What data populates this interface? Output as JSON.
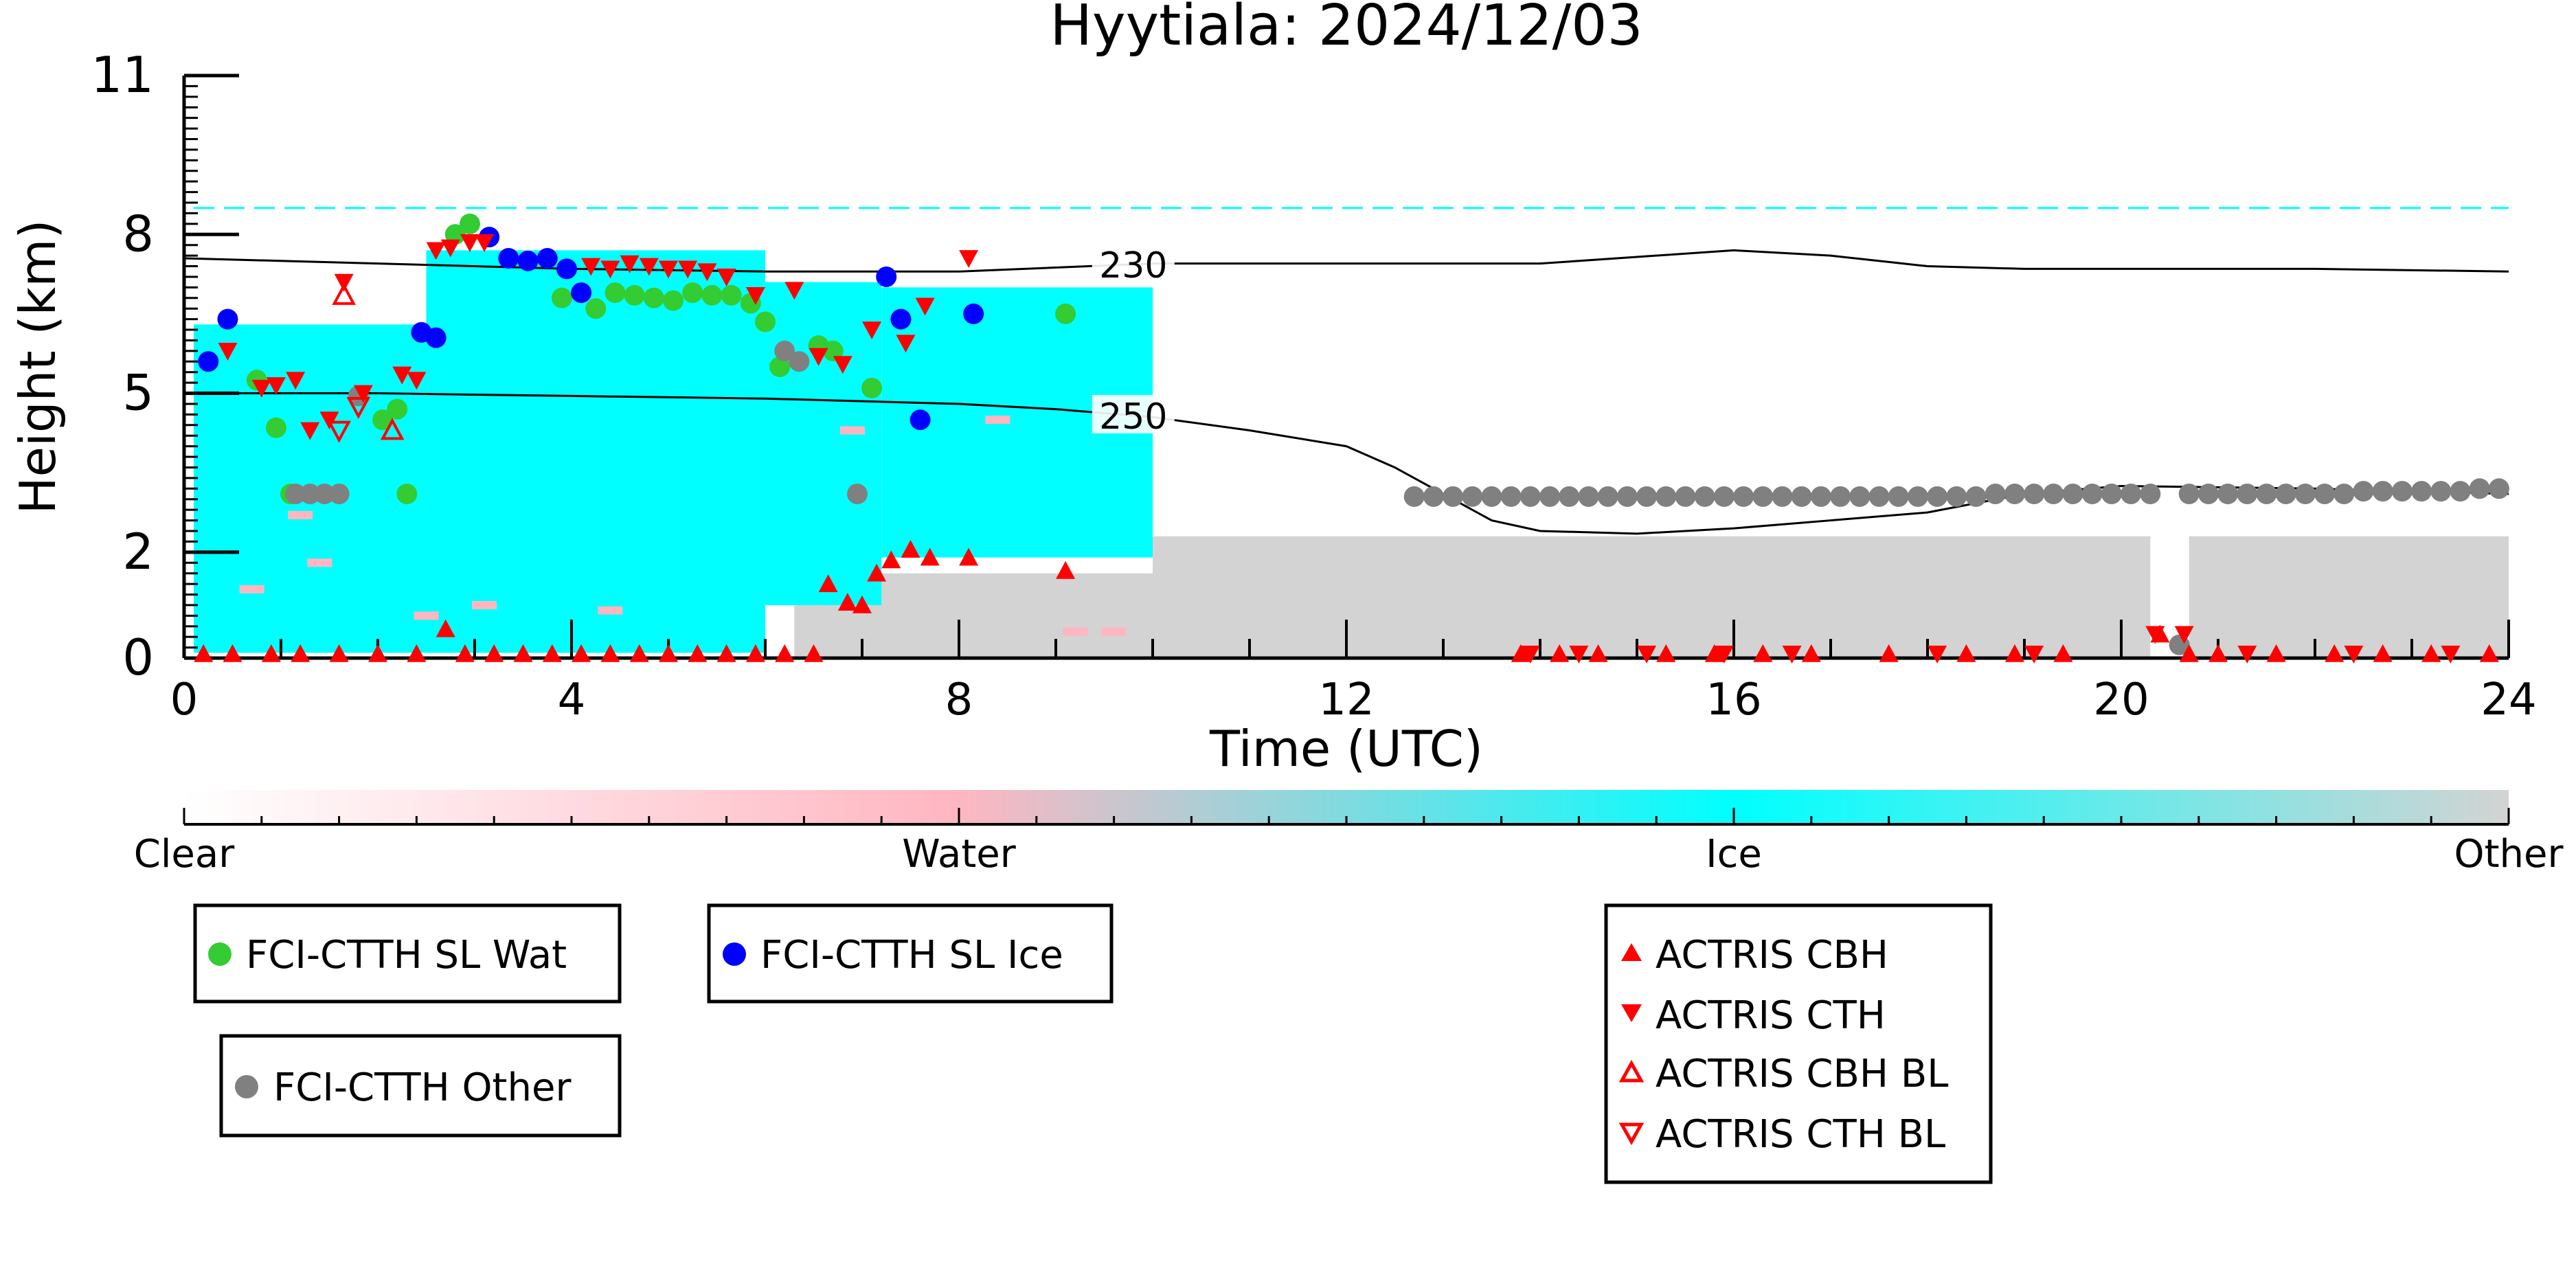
{
  "chart_data": {
    "type": "scatter",
    "title": "Hyytiala: 2024/12/03",
    "xlabel": "Time (UTC)",
    "ylabel": "Height (km)",
    "xlim": [
      0,
      24
    ],
    "ylim": [
      0,
      11
    ],
    "xticks": [
      "0",
      "4",
      "8",
      "12",
      "16",
      "20",
      "24"
    ],
    "yticks": [
      "0",
      "2",
      "5",
      "8",
      "11"
    ],
    "grid": false,
    "background_fields": [
      {
        "name": "Ice",
        "color": "#00FFFF",
        "regions": [
          {
            "x": [
              0.1,
              2.5
            ],
            "bottom": 0.1,
            "top": 6.3
          },
          {
            "x": [
              2.5,
              6.0
            ],
            "bottom": 0.1,
            "top": 7.7
          },
          {
            "x": [
              6.0,
              7.2
            ],
            "bottom": 1.0,
            "top": 7.1
          },
          {
            "x": [
              7.2,
              10.0
            ],
            "bottom": 1.9,
            "top": 7.0
          }
        ],
        "thin_layer": {
          "x": [
            0.1,
            24
          ],
          "y": 8.5
        }
      },
      {
        "name": "Water",
        "color": "#FFB6C1",
        "patches": [
          [
            0.7,
            1.3
          ],
          [
            1.4,
            1.8
          ],
          [
            2.5,
            0.8
          ],
          [
            3.1,
            1.0
          ],
          [
            4.4,
            0.9
          ],
          [
            6.9,
            4.3
          ],
          [
            8.4,
            4.5
          ],
          [
            9.2,
            0.5
          ],
          [
            9.6,
            0.5
          ],
          [
            1.2,
            2.7
          ]
        ]
      },
      {
        "name": "Other",
        "color": "#D3D3D3",
        "regions": [
          {
            "x": [
              6.3,
              10.0
            ],
            "bottom": 0.0,
            "top": 1.6
          },
          {
            "x": [
              10.0,
              20.3
            ],
            "bottom": 0.0,
            "top": 2.3
          },
          {
            "x": [
              20.7,
              24.0
            ],
            "bottom": 0.0,
            "top": 2.3
          }
        ]
      }
    ],
    "isolines": [
      {
        "label": "230",
        "x": [
          0,
          2,
          4,
          6,
          8,
          10,
          12,
          14,
          16,
          17,
          18,
          19,
          20,
          22,
          24
        ],
        "y": [
          7.55,
          7.45,
          7.35,
          7.3,
          7.3,
          7.45,
          7.45,
          7.45,
          7.7,
          7.6,
          7.4,
          7.35,
          7.35,
          7.35,
          7.3
        ]
      },
      {
        "label": "250",
        "x": [
          0,
          2,
          4,
          6,
          8,
          9,
          10,
          11,
          12,
          12.5,
          13,
          13.5,
          14,
          15,
          16,
          17,
          18,
          19,
          20,
          22,
          24
        ],
        "y": [
          5.0,
          5.0,
          4.95,
          4.9,
          4.8,
          4.7,
          4.55,
          4.3,
          4.0,
          3.6,
          3.1,
          2.6,
          2.4,
          2.35,
          2.45,
          2.6,
          2.75,
          3.1,
          3.25,
          3.2,
          3.1
        ]
      }
    ],
    "series": [
      {
        "name": "FCI-CTTH SL Wat",
        "marker": "circle",
        "color": "#33CC33",
        "points": [
          [
            0.75,
            5.25
          ],
          [
            0.95,
            4.35
          ],
          [
            1.1,
            3.1
          ],
          [
            2.05,
            4.5
          ],
          [
            2.2,
            4.7
          ],
          [
            2.3,
            3.1
          ],
          [
            2.8,
            8.0
          ],
          [
            2.95,
            8.2
          ],
          [
            3.9,
            6.8
          ],
          [
            4.25,
            6.6
          ],
          [
            4.45,
            6.9
          ],
          [
            4.65,
            6.85
          ],
          [
            4.85,
            6.8
          ],
          [
            5.05,
            6.75
          ],
          [
            5.25,
            6.9
          ],
          [
            5.45,
            6.85
          ],
          [
            5.65,
            6.85
          ],
          [
            5.85,
            6.7
          ],
          [
            6.0,
            6.35
          ],
          [
            6.15,
            5.5
          ],
          [
            6.55,
            5.9
          ],
          [
            6.7,
            5.8
          ],
          [
            7.1,
            5.1
          ],
          [
            9.1,
            6.5
          ]
        ]
      },
      {
        "name": "FCI-CTTH SL Ice",
        "marker": "circle",
        "color": "#0000FF",
        "points": [
          [
            0.25,
            5.6
          ],
          [
            0.45,
            6.4
          ],
          [
            2.45,
            6.15
          ],
          [
            2.6,
            6.05
          ],
          [
            3.15,
            7.95
          ],
          [
            3.35,
            7.55
          ],
          [
            3.55,
            7.5
          ],
          [
            3.75,
            7.55
          ],
          [
            3.95,
            7.35
          ],
          [
            4.1,
            6.9
          ],
          [
            7.25,
            7.2
          ],
          [
            7.4,
            6.4
          ],
          [
            7.6,
            4.5
          ],
          [
            8.15,
            6.5
          ]
        ]
      },
      {
        "name": "FCI-CTTH Other",
        "marker": "circle",
        "color": "#808080",
        "points": [
          [
            1.15,
            3.1
          ],
          [
            1.3,
            3.1
          ],
          [
            1.45,
            3.1
          ],
          [
            1.6,
            3.1
          ],
          [
            1.8,
            4.95
          ],
          [
            6.2,
            5.8
          ],
          [
            6.35,
            5.6
          ],
          [
            6.95,
            3.1
          ],
          [
            20.6,
            0.25
          ],
          [
            12.7,
            3.05
          ],
          [
            12.9,
            3.05
          ],
          [
            13.1,
            3.05
          ],
          [
            13.3,
            3.05
          ],
          [
            13.5,
            3.05
          ],
          [
            13.7,
            3.05
          ],
          [
            13.9,
            3.05
          ],
          [
            14.1,
            3.05
          ],
          [
            14.3,
            3.05
          ],
          [
            14.5,
            3.05
          ],
          [
            14.7,
            3.05
          ],
          [
            14.9,
            3.05
          ],
          [
            15.1,
            3.05
          ],
          [
            15.3,
            3.05
          ],
          [
            15.5,
            3.05
          ],
          [
            15.7,
            3.05
          ],
          [
            15.9,
            3.05
          ],
          [
            16.1,
            3.05
          ],
          [
            16.3,
            3.05
          ],
          [
            16.5,
            3.05
          ],
          [
            16.7,
            3.05
          ],
          [
            16.9,
            3.05
          ],
          [
            17.1,
            3.05
          ],
          [
            17.3,
            3.05
          ],
          [
            17.5,
            3.05
          ],
          [
            17.7,
            3.05
          ],
          [
            17.9,
            3.05
          ],
          [
            18.1,
            3.05
          ],
          [
            18.3,
            3.05
          ],
          [
            18.5,
            3.05
          ],
          [
            18.7,
            3.1
          ],
          [
            18.9,
            3.1
          ],
          [
            19.1,
            3.1
          ],
          [
            19.3,
            3.1
          ],
          [
            19.5,
            3.1
          ],
          [
            19.7,
            3.1
          ],
          [
            19.9,
            3.1
          ],
          [
            20.1,
            3.1
          ],
          [
            20.3,
            3.1
          ],
          [
            20.7,
            3.1
          ],
          [
            20.9,
            3.1
          ],
          [
            21.1,
            3.1
          ],
          [
            21.3,
            3.1
          ],
          [
            21.5,
            3.1
          ],
          [
            21.7,
            3.1
          ],
          [
            21.9,
            3.1
          ],
          [
            22.1,
            3.1
          ],
          [
            22.3,
            3.1
          ],
          [
            22.5,
            3.15
          ],
          [
            22.7,
            3.15
          ],
          [
            22.9,
            3.15
          ],
          [
            23.1,
            3.15
          ],
          [
            23.3,
            3.15
          ],
          [
            23.5,
            3.15
          ],
          [
            23.7,
            3.2
          ],
          [
            23.9,
            3.2
          ]
        ]
      },
      {
        "name": "ACTRIS CBH",
        "marker": "triangle-up",
        "color": "#FF0000",
        "filled": true,
        "points": [
          [
            0.2,
            0.08
          ],
          [
            0.5,
            0.08
          ],
          [
            0.9,
            0.08
          ],
          [
            1.2,
            0.08
          ],
          [
            1.6,
            0.08
          ],
          [
            2.0,
            0.08
          ],
          [
            2.4,
            0.08
          ],
          [
            2.7,
            0.55
          ],
          [
            2.9,
            0.08
          ],
          [
            3.2,
            0.08
          ],
          [
            3.5,
            0.08
          ],
          [
            3.8,
            0.08
          ],
          [
            4.1,
            0.08
          ],
          [
            4.4,
            0.08
          ],
          [
            4.7,
            0.08
          ],
          [
            5.0,
            0.08
          ],
          [
            5.3,
            0.08
          ],
          [
            5.6,
            0.08
          ],
          [
            5.9,
            0.08
          ],
          [
            6.2,
            0.08
          ],
          [
            6.5,
            0.08
          ],
          [
            6.65,
            1.4
          ],
          [
            6.85,
            1.05
          ],
          [
            7.0,
            1.0
          ],
          [
            7.15,
            1.6
          ],
          [
            7.3,
            1.85
          ],
          [
            7.5,
            2.05
          ],
          [
            7.7,
            1.9
          ],
          [
            8.1,
            1.9
          ],
          [
            9.1,
            1.65
          ],
          [
            13.8,
            0.08
          ],
          [
            14.2,
            0.08
          ],
          [
            14.6,
            0.08
          ],
          [
            15.3,
            0.08
          ],
          [
            15.8,
            0.08
          ],
          [
            16.3,
            0.08
          ],
          [
            16.8,
            0.08
          ],
          [
            17.6,
            0.08
          ],
          [
            18.4,
            0.08
          ],
          [
            18.9,
            0.08
          ],
          [
            19.4,
            0.08
          ],
          [
            20.4,
            0.45
          ],
          [
            20.7,
            0.08
          ],
          [
            21.0,
            0.08
          ],
          [
            21.6,
            0.08
          ],
          [
            22.2,
            0.08
          ],
          [
            22.7,
            0.08
          ],
          [
            23.2,
            0.08
          ],
          [
            23.8,
            0.08
          ]
        ]
      },
      {
        "name": "ACTRIS CTH",
        "marker": "triangle-down",
        "color": "#FF0000",
        "filled": true,
        "points": [
          [
            0.45,
            5.8
          ],
          [
            0.8,
            5.1
          ],
          [
            0.95,
            5.15
          ],
          [
            1.15,
            5.25
          ],
          [
            1.3,
            4.3
          ],
          [
            1.5,
            4.5
          ],
          [
            1.65,
            7.1
          ],
          [
            1.85,
            5.0
          ],
          [
            2.25,
            5.35
          ],
          [
            2.4,
            5.25
          ],
          [
            2.6,
            7.7
          ],
          [
            2.75,
            7.75
          ],
          [
            2.95,
            7.85
          ],
          [
            3.1,
            7.85
          ],
          [
            4.2,
            7.4
          ],
          [
            4.4,
            7.35
          ],
          [
            4.6,
            7.45
          ],
          [
            4.8,
            7.4
          ],
          [
            5.0,
            7.35
          ],
          [
            5.2,
            7.35
          ],
          [
            5.4,
            7.3
          ],
          [
            5.6,
            7.2
          ],
          [
            5.9,
            6.85
          ],
          [
            6.3,
            6.95
          ],
          [
            6.55,
            5.7
          ],
          [
            6.8,
            5.55
          ],
          [
            7.1,
            6.2
          ],
          [
            7.45,
            5.95
          ],
          [
            7.65,
            6.65
          ],
          [
            8.1,
            7.55
          ],
          [
            13.9,
            0.08
          ],
          [
            14.4,
            0.08
          ],
          [
            15.1,
            0.08
          ],
          [
            15.9,
            0.08
          ],
          [
            16.6,
            0.08
          ],
          [
            18.1,
            0.08
          ],
          [
            19.1,
            0.08
          ],
          [
            20.35,
            0.45
          ],
          [
            20.65,
            0.45
          ],
          [
            21.3,
            0.08
          ],
          [
            22.4,
            0.08
          ],
          [
            23.4,
            0.08
          ]
        ]
      },
      {
        "name": "ACTRIS CBH BL",
        "marker": "triangle-up",
        "color": "#FF0000",
        "filled": false,
        "points": [
          [
            1.65,
            6.85
          ],
          [
            2.15,
            4.3
          ]
        ]
      },
      {
        "name": "ACTRIS CTH BL",
        "marker": "triangle-down",
        "color": "#FF0000",
        "filled": false,
        "points": [
          [
            1.6,
            4.3
          ],
          [
            1.8,
            4.75
          ]
        ]
      }
    ],
    "colorbar": {
      "labels": [
        "Clear",
        "Water",
        "Ice",
        "Other"
      ],
      "colors": [
        "#FFFFFF",
        "#FFB6C1",
        "#00FFFF",
        "#D3D3D3"
      ]
    },
    "legends": [
      {
        "entries": [
          "FCI-CTTH SL Wat"
        ]
      },
      {
        "entries": [
          "FCI-CTTH SL Ice"
        ]
      },
      {
        "entries": [
          "FCI-CTTH Other"
        ]
      },
      {
        "entries": [
          "ACTRIS CBH",
          "ACTRIS CTH",
          "ACTRIS CBH BL",
          "ACTRIS CTH BL"
        ]
      }
    ]
  }
}
